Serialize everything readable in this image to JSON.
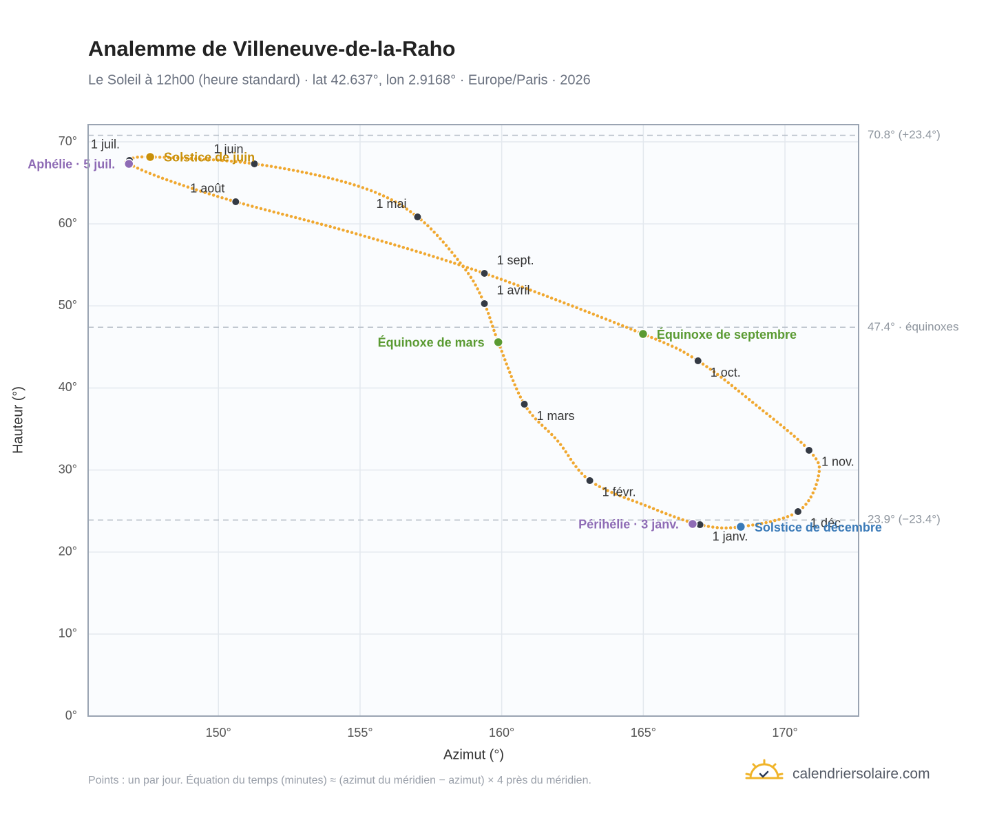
{
  "chart_data": {
    "type": "analemma",
    "title": "Analemme de Villeneuve-de-la-Raho",
    "subtitle": "Le Soleil à 12h00 (heure standard) · lat 42.637°, lon 2.9168° · Europe/Paris · 2026",
    "x_label": "Azimut (°)",
    "y_label": "Hauteur (°)",
    "xlim": [
      145.4,
      172.6
    ],
    "ylim": [
      0,
      72.1
    ],
    "xticks": [
      {
        "value": 150,
        "label": "150°"
      },
      {
        "value": 155,
        "label": "155°"
      },
      {
        "value": 160,
        "label": "160°"
      },
      {
        "value": 165,
        "label": "165°"
      },
      {
        "value": 170,
        "label": "170°"
      }
    ],
    "yticks": [
      {
        "value": 0,
        "label": "0°"
      },
      {
        "value": 10,
        "label": "10°"
      },
      {
        "value": 20,
        "label": "20°"
      },
      {
        "value": 30,
        "label": "30°"
      },
      {
        "value": 40,
        "label": "40°"
      },
      {
        "value": 50,
        "label": "50°"
      },
      {
        "value": 60,
        "label": "60°"
      },
      {
        "value": 70,
        "label": "70°"
      }
    ],
    "grid": true,
    "trajectory": {
      "color": "#f0a830",
      "x": [
        167.0,
        165.13,
        163.11,
        161.97,
        160.8,
        159.88,
        159.39,
        158.69,
        157.03,
        154.91,
        151.27,
        147.59,
        146.86,
        146.84,
        148.1,
        150.61,
        154.91,
        159.39,
        164.99,
        166.93,
        169.03,
        170.85,
        171.19,
        170.46,
        168.44
      ],
      "y": [
        23.33,
        25.6,
        28.71,
        33.57,
        38.02,
        45.58,
        50.28,
        54.56,
        60.85,
        64.63,
        67.32,
        68.16,
        67.74,
        67.32,
        65.47,
        62.7,
        58.75,
        53.97,
        46.58,
        43.31,
        37.77,
        32.4,
        29.38,
        24.93,
        23.08
      ]
    },
    "reference_lines": [
      {
        "value": 70.8,
        "label": "70.8° (+23.4°)"
      },
      {
        "value": 47.4,
        "label": "47.4° · équinoxes"
      },
      {
        "value": 23.9,
        "label": "23.9° (−23.4°)"
      }
    ],
    "month_color": "#343a44",
    "month_markers": [
      {
        "label": "1 janv.",
        "x": 167.0,
        "y": 23.33
      },
      {
        "label": "1 févr.",
        "x": 163.11,
        "y": 28.71
      },
      {
        "label": "1 mars",
        "x": 160.8,
        "y": 38.02
      },
      {
        "label": "1 avril",
        "x": 159.39,
        "y": 50.28
      },
      {
        "label": "1 mai",
        "x": 157.03,
        "y": 60.85
      },
      {
        "label": "1 juin",
        "x": 151.27,
        "y": 67.32
      },
      {
        "label": "1 juil.",
        "x": 146.86,
        "y": 67.74
      },
      {
        "label": "1 août",
        "x": 150.61,
        "y": 62.7
      },
      {
        "label": "1 sept.",
        "x": 159.39,
        "y": 53.97
      },
      {
        "label": "1 oct.",
        "x": 166.93,
        "y": 43.31
      },
      {
        "label": "1 nov.",
        "x": 170.85,
        "y": 32.4
      },
      {
        "label": "1 déc.",
        "x": 170.46,
        "y": 24.93
      }
    ],
    "events": [
      {
        "label": "Périhélie · 3 janv.",
        "x": 166.74,
        "y": 23.42,
        "color": "#8e6bb5"
      },
      {
        "label": "Équinoxe de mars",
        "x": 159.88,
        "y": 45.58,
        "color": "#5a9a32"
      },
      {
        "label": "Solstice de juin",
        "x": 147.59,
        "y": 68.16,
        "color": "#c8900a"
      },
      {
        "label": "Aphélie · 5 juil.",
        "x": 146.84,
        "y": 67.32,
        "color": "#8e6bb5"
      },
      {
        "label": "Équinoxe de septembre",
        "x": 164.99,
        "y": 46.58,
        "color": "#5a9a32"
      },
      {
        "label": "Solstice de décembre",
        "x": 168.44,
        "y": 23.08,
        "color": "#3a7ab8"
      }
    ],
    "footnote": "Points : un par jour. Équation du temps (minutes) ≈ (azimut du méridien − azimut) × 4 près du méridien.",
    "brand": "calendriersolaire.com"
  }
}
